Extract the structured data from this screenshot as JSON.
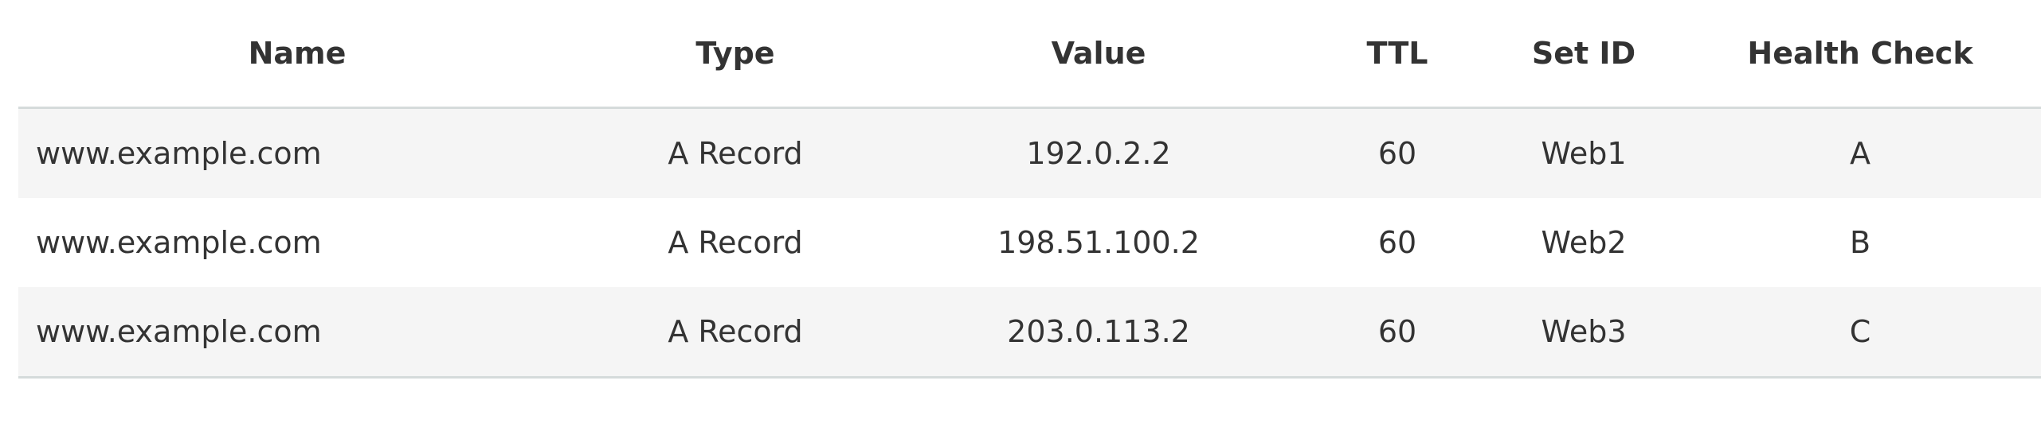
{
  "table": {
    "headers": {
      "name": "Name",
      "type": "Type",
      "value": "Value",
      "ttl": "TTL",
      "set_id": "Set ID",
      "health_check": "Health Check"
    },
    "rows": [
      {
        "name": "www.example.com",
        "type": "A Record",
        "value": "192.0.2.2",
        "ttl": "60",
        "set_id": "Web1",
        "health_check": "A"
      },
      {
        "name": "www.example.com",
        "type": "A Record",
        "value": "198.51.100.2",
        "ttl": "60",
        "set_id": "Web2",
        "health_check": "B"
      },
      {
        "name": "www.example.com",
        "type": "A Record",
        "value": "203.0.113.2",
        "ttl": "60",
        "set_id": "Web3",
        "health_check": "C"
      }
    ]
  },
  "colors": {
    "stripe": "#f5f5f5",
    "border": "#d5dbdb",
    "text": "#333333"
  }
}
